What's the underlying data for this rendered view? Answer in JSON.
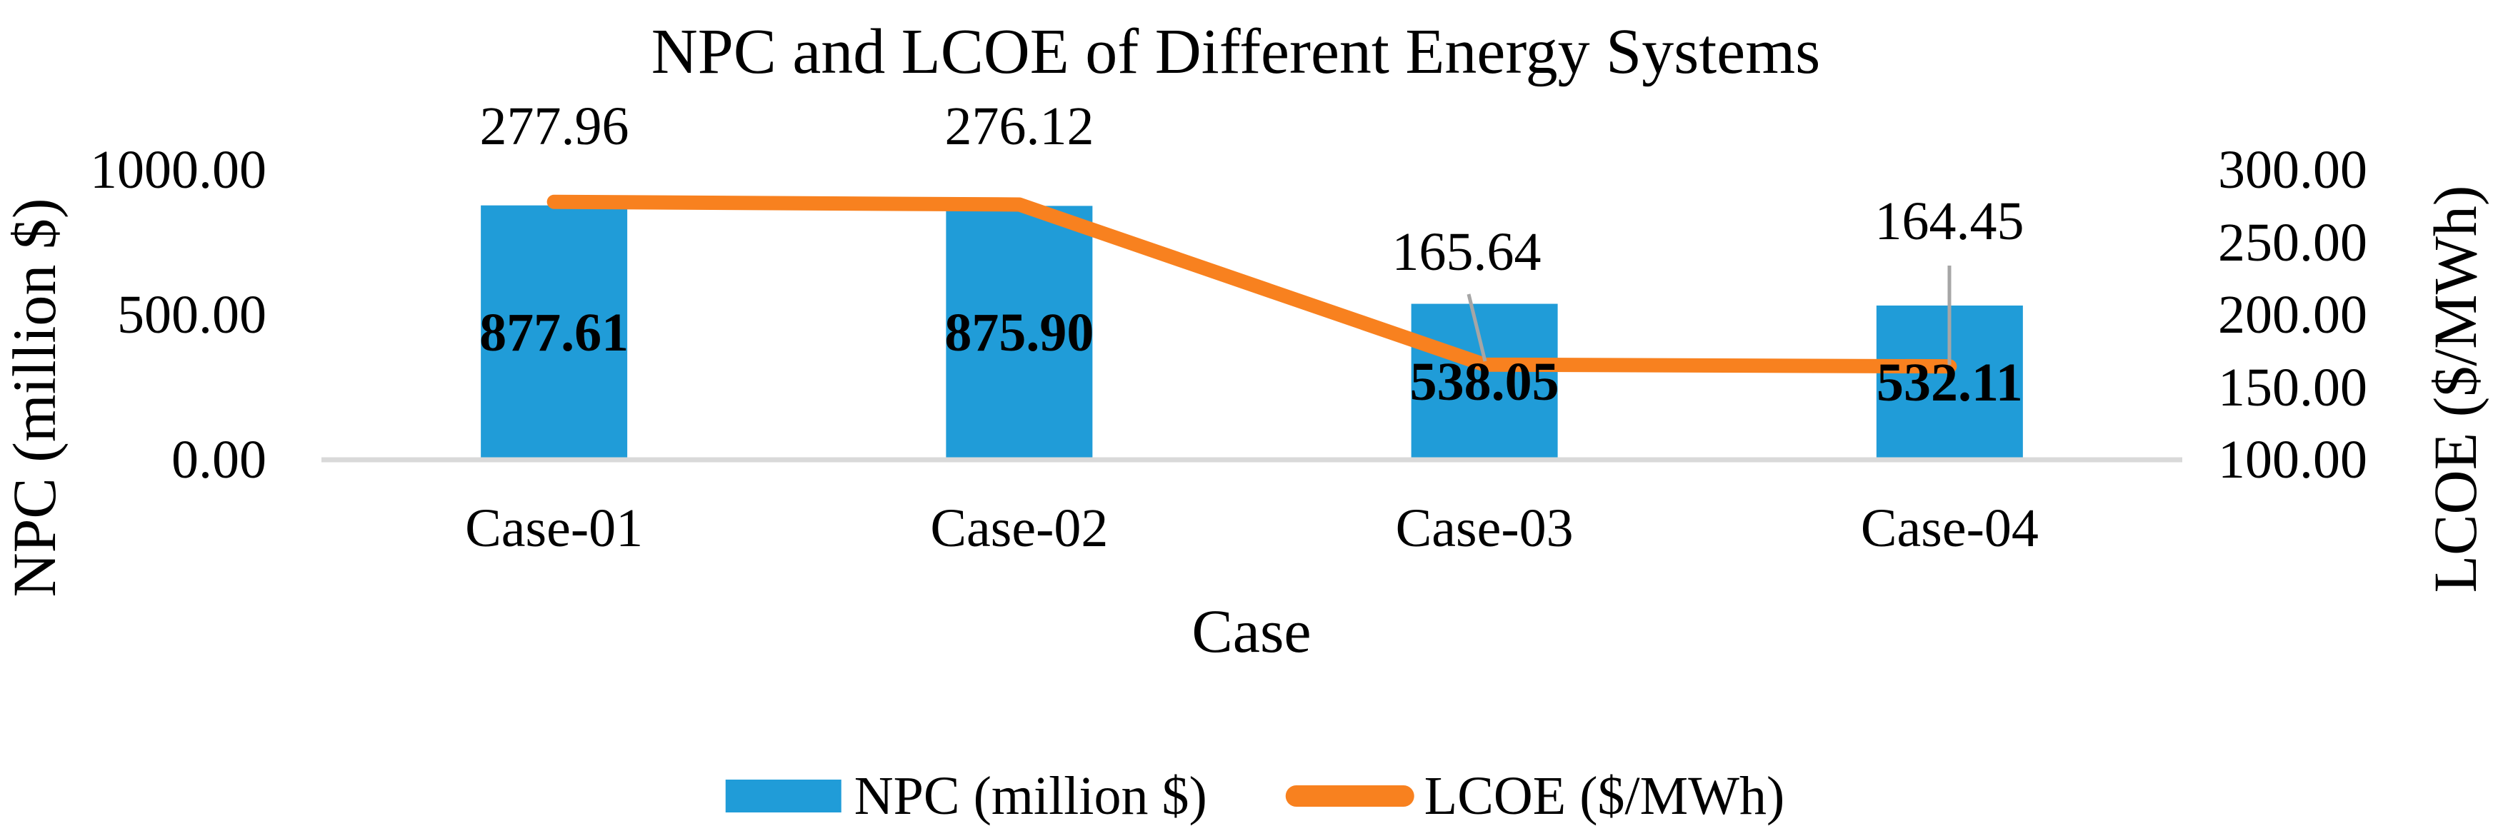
{
  "title": "NPC and LCOE of Different Energy Systems",
  "colors": {
    "bar": "#209CD8",
    "line": "#F8811F",
    "axis_line": "#D9D9D9",
    "leader_line": "#A6A6A6",
    "text": "#000000",
    "background": "#FFFFFF"
  },
  "chart_data": {
    "type": "combo_bar_line",
    "title": "NPC and LCOE of Different Energy Systems",
    "categories": [
      "Case-01",
      "Case-02",
      "Case-03",
      "Case-04"
    ],
    "series": [
      {
        "name": "NPC (million $)",
        "chart": "bar",
        "axis": "left",
        "color": "#209CD8",
        "values": [
          877.61,
          875.9,
          538.05,
          532.11
        ],
        "labels": [
          "877.61",
          "875.90",
          "538.05",
          "532.11"
        ]
      },
      {
        "name": "LCOE ($/MWh)",
        "chart": "line",
        "axis": "right",
        "color": "#F8811F",
        "values": [
          277.96,
          276.12,
          165.64,
          164.45
        ],
        "labels": [
          "277.96",
          "276.12",
          "165.64",
          "164.45"
        ]
      }
    ],
    "xlabel": "Case",
    "left_axis": {
      "title": "NPC (million $)",
      "ticks": [
        "0.00",
        "500.00",
        "1000.00"
      ],
      "tick_values": [
        0,
        500,
        1000
      ],
      "min": 0,
      "max": 1000
    },
    "right_axis": {
      "title": "LCOE ($/MWh)",
      "ticks": [
        "100.00",
        "150.00",
        "200.00",
        "250.00",
        "300.00"
      ],
      "tick_values": [
        100,
        150,
        200,
        250,
        300
      ],
      "min": 100,
      "max": 300
    },
    "legend_position": "bottom",
    "gridlines": false
  },
  "legend": {
    "items": [
      {
        "label": "NPC (million $)",
        "swatch": "bar"
      },
      {
        "label": "LCOE ($/MWh)",
        "swatch": "line"
      }
    ]
  }
}
